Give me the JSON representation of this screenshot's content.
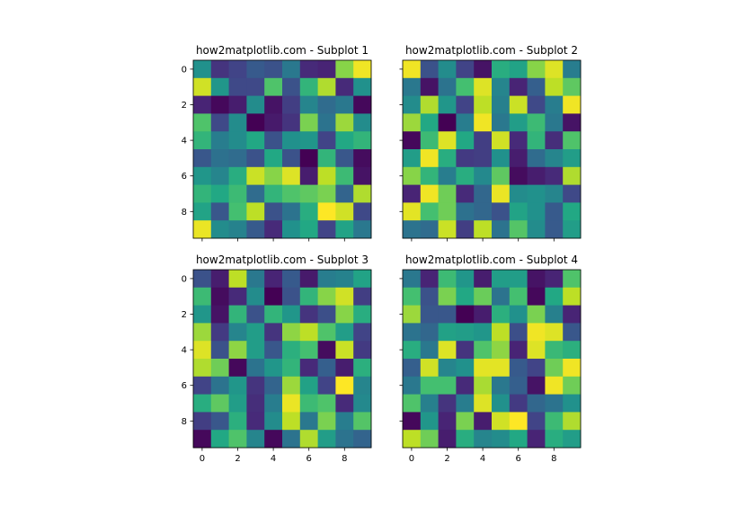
{
  "chart_data": [
    {
      "type": "heatmap",
      "title": "how2matplotlib.com - Subplot 1",
      "colormap": "viridis",
      "xticks": [
        "0",
        "2",
        "4",
        "6",
        "8"
      ],
      "yticks": [
        "0",
        "2",
        "4",
        "6",
        "8"
      ],
      "show_xtick_labels": false,
      "show_ytick_labels": true,
      "values": [
        [
          0.5,
          0.15,
          0.2,
          0.28,
          0.25,
          0.4,
          0.12,
          0.1,
          0.82,
          0.98
        ],
        [
          0.93,
          0.52,
          0.22,
          0.22,
          0.72,
          0.25,
          0.65,
          0.88,
          0.12,
          0.5
        ],
        [
          0.1,
          0.02,
          0.08,
          0.48,
          0.05,
          0.18,
          0.45,
          0.35,
          0.4,
          0.02
        ],
        [
          0.72,
          0.22,
          0.48,
          0.0,
          0.07,
          0.15,
          0.8,
          0.38,
          0.85,
          0.48
        ],
        [
          0.65,
          0.42,
          0.48,
          0.6,
          0.25,
          0.5,
          0.52,
          0.2,
          0.6,
          0.65
        ],
        [
          0.27,
          0.37,
          0.35,
          0.25,
          0.6,
          0.25,
          0.0,
          0.65,
          0.27,
          0.03
        ],
        [
          0.52,
          0.45,
          0.62,
          0.92,
          0.82,
          0.95,
          0.08,
          0.9,
          0.68,
          0.05
        ],
        [
          0.65,
          0.6,
          0.68,
          0.35,
          0.65,
          0.72,
          0.75,
          0.8,
          0.32,
          0.88
        ],
        [
          0.58,
          0.27,
          0.7,
          0.9,
          0.25,
          0.38,
          0.62,
          1.0,
          0.93,
          0.22
        ],
        [
          0.97,
          0.48,
          0.44,
          0.28,
          0.12,
          0.5,
          0.6,
          0.2,
          0.58,
          0.4
        ]
      ]
    },
    {
      "type": "heatmap",
      "title": "how2matplotlib.com - Subplot 2",
      "colormap": "viridis",
      "xticks": [
        "0",
        "2",
        "4",
        "6",
        "8"
      ],
      "yticks": [
        "0",
        "2",
        "4",
        "6",
        "8"
      ],
      "show_xtick_labels": false,
      "show_ytick_labels": false,
      "values": [
        [
          0.98,
          0.25,
          0.48,
          0.2,
          0.05,
          0.62,
          0.58,
          0.82,
          0.95,
          0.42
        ],
        [
          0.4,
          0.05,
          0.38,
          0.7,
          0.95,
          0.45,
          0.1,
          0.3,
          0.9,
          0.75
        ],
        [
          0.48,
          0.88,
          0.52,
          0.2,
          0.9,
          0.43,
          0.92,
          0.22,
          0.42,
          0.98
        ],
        [
          0.85,
          0.6,
          0.0,
          0.42,
          0.98,
          0.4,
          0.55,
          0.68,
          0.4,
          0.05
        ],
        [
          0.02,
          0.68,
          0.95,
          0.6,
          0.18,
          0.93,
          0.12,
          0.65,
          0.13,
          0.72
        ],
        [
          0.55,
          0.98,
          0.62,
          0.17,
          0.18,
          0.5,
          0.08,
          0.35,
          0.45,
          0.55
        ],
        [
          0.82,
          0.65,
          0.42,
          0.62,
          0.47,
          0.75,
          0.03,
          0.08,
          0.12,
          0.88
        ],
        [
          0.1,
          0.98,
          0.78,
          0.12,
          0.33,
          0.97,
          0.48,
          0.5,
          0.45,
          0.22
        ],
        [
          0.96,
          0.7,
          0.78,
          0.37,
          0.33,
          0.25,
          0.58,
          0.5,
          0.28,
          0.6
        ],
        [
          0.38,
          0.35,
          0.92,
          0.18,
          0.9,
          0.38,
          0.73,
          0.48,
          0.28,
          0.55
        ]
      ]
    },
    {
      "type": "heatmap",
      "title": "how2matplotlib.com - Subplot 3",
      "colormap": "viridis",
      "xticks": [
        "0",
        "2",
        "4",
        "6",
        "8"
      ],
      "yticks": [
        "0",
        "2",
        "4",
        "6",
        "8"
      ],
      "show_xtick_labels": true,
      "show_ytick_labels": true,
      "values": [
        [
          0.25,
          0.08,
          0.9,
          0.4,
          0.1,
          0.28,
          0.07,
          0.42,
          0.44,
          0.58
        ],
        [
          0.68,
          0.03,
          0.12,
          0.48,
          0.0,
          0.25,
          0.65,
          0.82,
          0.93,
          0.18
        ],
        [
          0.52,
          0.05,
          0.65,
          0.25,
          0.65,
          0.52,
          0.15,
          0.24,
          0.82,
          0.62
        ],
        [
          0.85,
          0.17,
          0.45,
          0.55,
          0.15,
          0.83,
          0.9,
          0.72,
          0.55,
          0.2
        ],
        [
          0.95,
          0.25,
          0.83,
          0.55,
          0.27,
          0.63,
          0.7,
          0.03,
          0.92,
          0.17
        ],
        [
          0.88,
          0.78,
          0.02,
          0.38,
          0.52,
          0.65,
          0.12,
          0.3,
          0.08,
          0.63
        ],
        [
          0.2,
          0.38,
          0.52,
          0.15,
          0.32,
          0.85,
          0.57,
          0.2,
          1.0,
          0.45
        ],
        [
          0.62,
          0.75,
          0.55,
          0.13,
          0.42,
          0.97,
          0.68,
          0.72,
          0.12,
          0.47
        ],
        [
          0.18,
          0.27,
          0.63,
          0.12,
          0.48,
          0.9,
          0.4,
          0.8,
          0.42,
          0.73
        ],
        [
          0.02,
          0.6,
          0.72,
          0.45,
          0.02,
          0.38,
          0.88,
          0.55,
          0.38,
          0.32
        ]
      ]
    },
    {
      "type": "heatmap",
      "title": "how2matplotlib.com - Subplot 4",
      "colormap": "viridis",
      "xticks": [
        "0",
        "2",
        "4",
        "6",
        "8"
      ],
      "yticks": [
        "0",
        "2",
        "4",
        "6",
        "8"
      ],
      "show_xtick_labels": true,
      "show_ytick_labels": false,
      "values": [
        [
          0.4,
          0.1,
          0.68,
          0.52,
          0.08,
          0.55,
          0.55,
          0.05,
          0.1,
          0.72
        ],
        [
          0.7,
          0.25,
          0.8,
          0.6,
          0.77,
          0.38,
          0.7,
          0.02,
          0.6,
          0.9
        ],
        [
          0.85,
          0.27,
          0.27,
          0.0,
          0.08,
          0.63,
          0.5,
          0.8,
          0.43,
          0.1
        ],
        [
          0.38,
          0.33,
          0.57,
          0.55,
          0.52,
          0.9,
          0.24,
          0.98,
          0.95,
          0.27
        ],
        [
          0.62,
          0.4,
          0.95,
          0.15,
          0.72,
          0.83,
          0.1,
          0.95,
          0.67,
          0.63
        ],
        [
          0.3,
          0.93,
          0.45,
          0.5,
          0.96,
          0.96,
          0.28,
          0.2,
          0.78,
          0.98
        ],
        [
          0.4,
          0.7,
          0.7,
          0.12,
          0.87,
          0.4,
          0.3,
          0.05,
          0.98,
          0.78
        ],
        [
          0.72,
          0.43,
          0.15,
          0.42,
          0.95,
          0.5,
          0.17,
          0.33,
          0.38,
          0.5
        ],
        [
          0.02,
          0.52,
          0.1,
          0.8,
          0.08,
          0.93,
          1.0,
          0.2,
          0.68,
          0.88
        ],
        [
          0.9,
          0.78,
          0.08,
          0.62,
          0.45,
          0.48,
          0.6,
          0.1,
          0.62,
          0.55
        ]
      ]
    }
  ]
}
